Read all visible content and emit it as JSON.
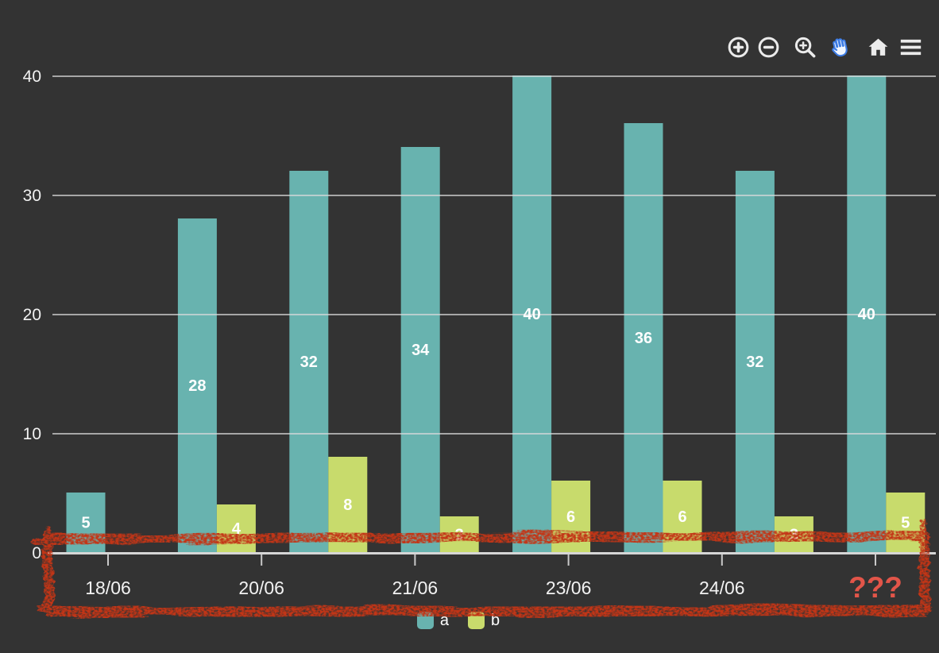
{
  "toolbar": {
    "icon_color": "#ebebeb",
    "pan_active_stroke": "#3d7ce4",
    "pan_active_fill": "#f2f7ff",
    "icons": [
      {
        "name": "zoom-in-icon"
      },
      {
        "name": "zoom-out-icon"
      },
      {
        "name": "zoom-area-icon"
      },
      {
        "name": "pan-icon",
        "active": true
      },
      {
        "name": "home-icon"
      },
      {
        "name": "menu-icon"
      }
    ]
  },
  "chart_data": {
    "type": "bar",
    "groups": 8,
    "series": [
      {
        "name": "a",
        "color": "#68b3af",
        "values": [
          5,
          28,
          32,
          34,
          40,
          36,
          32,
          40
        ]
      },
      {
        "name": "b",
        "color": "#c8db6c",
        "values": [
          null,
          4,
          8,
          3,
          6,
          6,
          3,
          5
        ]
      }
    ],
    "x_tick_labels": [
      "18/06",
      "20/06",
      "21/06",
      "23/06",
      "24/06",
      "???"
    ],
    "y_ticks": [
      0,
      10,
      20,
      30,
      40
    ],
    "ylim": [
      0,
      40
    ],
    "grid": true,
    "legend_position": "bottom-center",
    "value_labels": "inside-center",
    "colors": {
      "background": "#333333",
      "gridline": "#dcdcdc",
      "axis_line": "#d6d6d6",
      "tick": "#c9c9c9",
      "axis_text": "#f2f2f2",
      "value_label": "#ffffff"
    },
    "annotation": {
      "shape": "hand-drawn-box-around-x-axis",
      "color": "#c33517",
      "label": "???",
      "label_color": "#e25549"
    }
  }
}
